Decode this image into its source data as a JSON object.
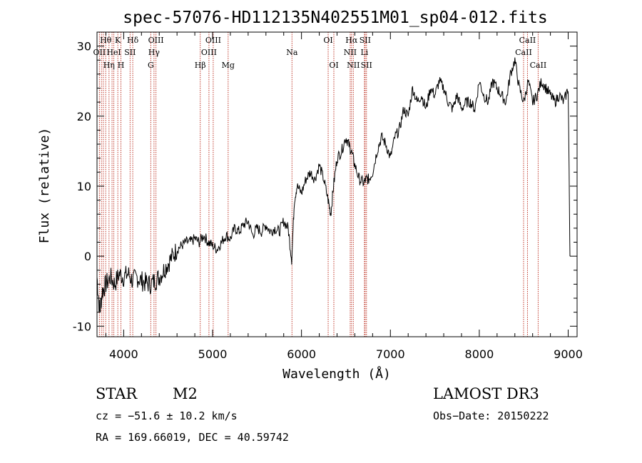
{
  "chart_data": {
    "type": "line",
    "title": "spec-57076-HD112135N402551M01_sp04-012.fits",
    "xlabel": "Wavelength (Å)",
    "ylabel": "Flux (relative)",
    "xlim": [
      3700,
      9100
    ],
    "ylim": [
      -11.5,
      32
    ],
    "xticks": [
      4000,
      5000,
      6000,
      7000,
      8000,
      9000
    ],
    "yticks": [
      -10,
      0,
      10,
      20,
      30
    ],
    "grid": false,
    "series": [
      {
        "name": "spectrum",
        "x": [
          3700,
          3730,
          3760,
          3800,
          3850,
          3900,
          3950,
          4000,
          4050,
          4100,
          4150,
          4200,
          4250,
          4300,
          4350,
          4400,
          4450,
          4500,
          4550,
          4600,
          4650,
          4700,
          4750,
          4800,
          4850,
          4900,
          4950,
          5000,
          5050,
          5100,
          5150,
          5200,
          5250,
          5300,
          5350,
          5400,
          5450,
          5500,
          5550,
          5600,
          5650,
          5700,
          5750,
          5800,
          5850,
          5890,
          5920,
          5950,
          6000,
          6050,
          6100,
          6150,
          6200,
          6250,
          6300,
          6330,
          6360,
          6400,
          6450,
          6500,
          6530,
          6560,
          6600,
          6650,
          6700,
          6730,
          6760,
          6800,
          6850,
          6900,
          6950,
          7000,
          7050,
          7100,
          7150,
          7200,
          7250,
          7300,
          7350,
          7400,
          7450,
          7500,
          7550,
          7600,
          7650,
          7700,
          7750,
          7800,
          7850,
          7900,
          7950,
          8000,
          8050,
          8100,
          8150,
          8200,
          8250,
          8300,
          8350,
          8400,
          8450,
          8500,
          8550,
          8600,
          8650,
          8700,
          8750,
          8800,
          8850,
          8900,
          8950,
          9000,
          9020
        ],
        "values": [
          -3,
          -8,
          -5,
          -4,
          -3,
          -4,
          -2.5,
          -3,
          -2.5,
          -3.5,
          -3,
          -3.5,
          -3.8,
          -4,
          -3.5,
          -3,
          -2,
          -1,
          0,
          1,
          1.5,
          2,
          2,
          2.5,
          2,
          3,
          2,
          1.5,
          1,
          2,
          3,
          2.5,
          4,
          3.5,
          4.5,
          5,
          3,
          4,
          3.5,
          4.5,
          3.5,
          4,
          3.5,
          5,
          4,
          -0.5,
          8,
          10,
          9,
          11,
          12,
          11,
          13,
          11,
          8,
          6,
          10,
          14,
          15,
          17,
          16,
          15,
          13,
          11,
          10.5,
          11,
          11,
          12,
          15,
          17,
          16,
          14,
          17,
          18,
          21,
          20,
          24,
          22,
          23,
          21,
          24,
          23,
          25,
          24,
          22,
          21,
          23,
          21,
          22,
          22,
          21,
          25,
          23,
          22,
          25,
          24,
          23,
          22,
          26,
          28,
          24,
          22,
          25,
          22,
          23,
          25,
          24,
          23,
          22,
          23,
          22,
          24,
          0
        ]
      }
    ],
    "lines": [
      {
        "x": 3727,
        "label": "OII",
        "row": 2
      },
      {
        "x": 3750,
        "label": "",
        "row": 0
      },
      {
        "x": 3771,
        "label": "",
        "row": 0
      },
      {
        "x": 3798,
        "label": "Hθ",
        "row": 1
      },
      {
        "x": 3835,
        "label": "Hη",
        "row": 3
      },
      {
        "x": 3869,
        "label": "",
        "row": 0
      },
      {
        "x": 3889,
        "label": "HeI",
        "row": 2
      },
      {
        "x": 3934,
        "label": "K",
        "row": 1
      },
      {
        "x": 3969,
        "label": "H",
        "row": 3
      },
      {
        "x": 4072,
        "label": "SII",
        "row": 2
      },
      {
        "x": 4102,
        "label": "Hδ",
        "row": 1
      },
      {
        "x": 4305,
        "label": "G",
        "row": 3
      },
      {
        "x": 4341,
        "label": "Hγ",
        "row": 2
      },
      {
        "x": 4363,
        "label": "OIII",
        "row": 1
      },
      {
        "x": 4861,
        "label": "Hβ",
        "row": 3
      },
      {
        "x": 4959,
        "label": "OIII",
        "row": 2
      },
      {
        "x": 5007,
        "label": "OIII",
        "row": 1
      },
      {
        "x": 5175,
        "label": "Mg",
        "row": 3
      },
      {
        "x": 5893,
        "label": "Na",
        "row": 2
      },
      {
        "x": 6300,
        "label": "OI",
        "row": 1
      },
      {
        "x": 6364,
        "label": "OI",
        "row": 3
      },
      {
        "x": 6548,
        "label": "NII",
        "row": 2
      },
      {
        "x": 6563,
        "label": "Hα",
        "row": 1
      },
      {
        "x": 6583,
        "label": "NII",
        "row": 3
      },
      {
        "x": 6708,
        "label": "Li",
        "row": 2
      },
      {
        "x": 6716,
        "label": "SII",
        "row": 1
      },
      {
        "x": 6731,
        "label": "SII",
        "row": 3
      },
      {
        "x": 8498,
        "label": "CaII",
        "row": 2
      },
      {
        "x": 8542,
        "label": "CaII",
        "row": 1
      },
      {
        "x": 8662,
        "label": "CaII",
        "row": 3
      }
    ],
    "line_color": "#c0392b"
  },
  "info": {
    "object_type": "STAR",
    "subclass": "M2",
    "survey": "LAMOST DR3",
    "cz": "cz = −51.6 ± 10.2 km/s",
    "obs_date": "Obs−Date: 20150222",
    "coords": "RA = 169.66019, DEC =  40.59742"
  }
}
